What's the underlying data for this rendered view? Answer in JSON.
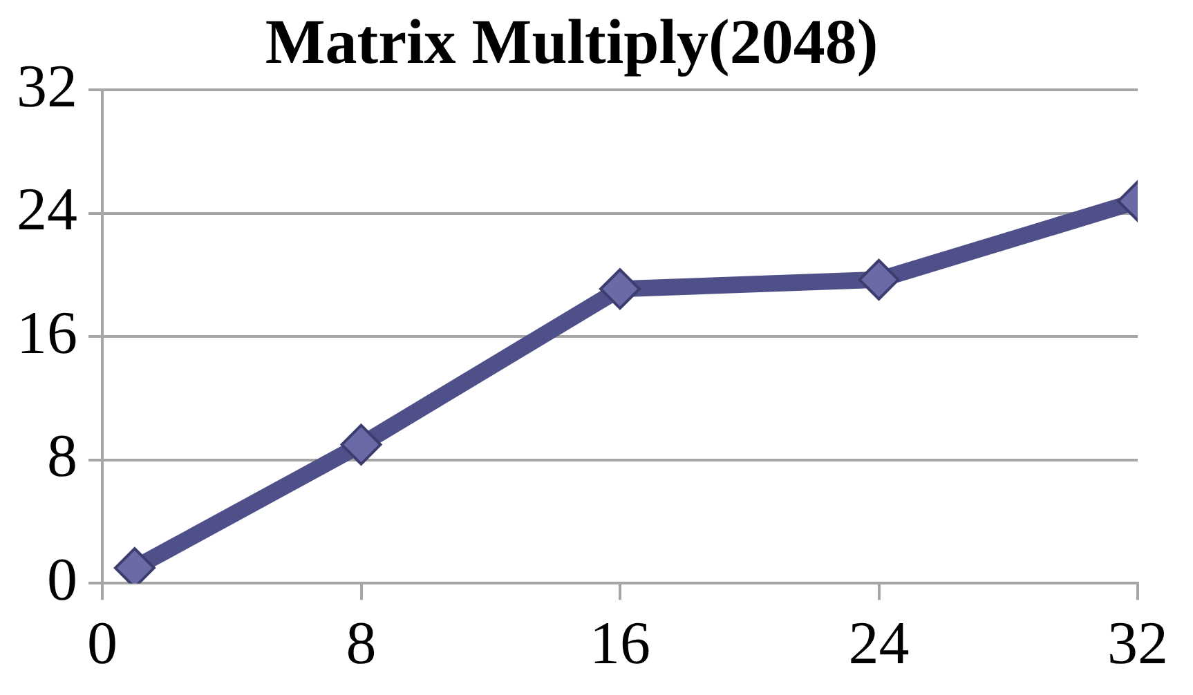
{
  "chart_data": {
    "type": "line",
    "title": "Matrix Multiply(2048)",
    "x": [
      1,
      8,
      16,
      24,
      32
    ],
    "series": [
      {
        "color": "#4f5089",
        "values": [
          1,
          9,
          19.1,
          19.7,
          24.8
        ]
      }
    ],
    "xlim": [
      0,
      32
    ],
    "xticks": [
      0,
      8,
      16,
      24,
      32
    ],
    "ylim": [
      0,
      32
    ],
    "yticks": [
      0,
      8,
      16,
      24,
      32
    ],
    "grid": "y",
    "legend": false,
    "marker": "diamond",
    "line_style": "solid"
  }
}
